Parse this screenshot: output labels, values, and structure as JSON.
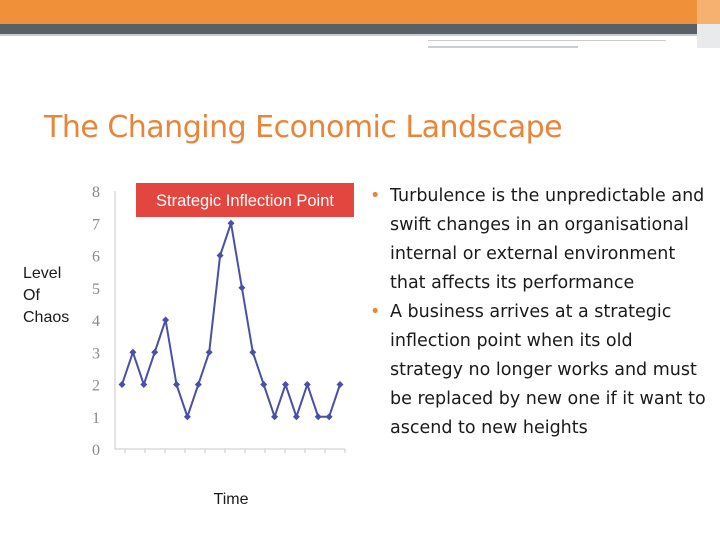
{
  "slide": {
    "title": "The Changing Economic Landscape",
    "bullets": [
      "Turbulence is the unpredictable and swift changes in an organisational internal or external environment that affects its performance",
      "A business arrives at a strategic inflection point when its old strategy no longer works and must be replaced by new one if it want to ascend to new heights"
    ]
  },
  "colors": {
    "accent": "#e8853b",
    "highlight": "#e2463e",
    "series": "#4a4fa8"
  },
  "chart_data": {
    "type": "line",
    "title": "",
    "annotation": "Strategic Inflection Point",
    "xlabel": "Time",
    "ylabel": "Level Of Chaos",
    "ylabel_lines": [
      "Level",
      "Of",
      "Chaos"
    ],
    "ylim": [
      0,
      8
    ],
    "yticks": [
      "0",
      "1",
      "2",
      "3",
      "4",
      "5",
      "6",
      "7",
      "8"
    ],
    "grid": false,
    "series": [
      {
        "name": "",
        "values": [
          2,
          3,
          2,
          3,
          4,
          2,
          1,
          2,
          3,
          6,
          7,
          5,
          3,
          2,
          1,
          2,
          1,
          2,
          1,
          1,
          2
        ]
      }
    ]
  }
}
